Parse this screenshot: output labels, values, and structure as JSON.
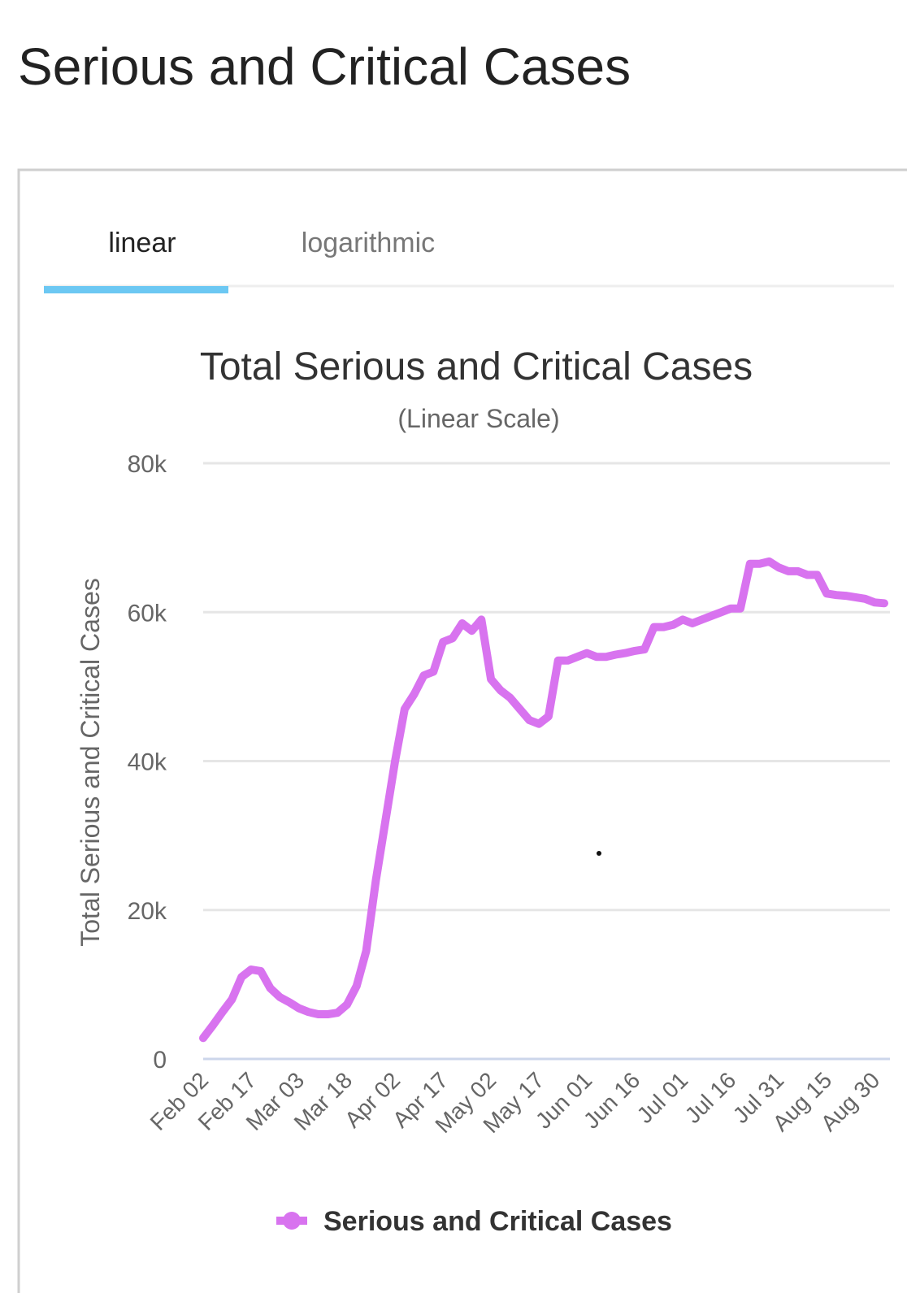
{
  "heading": "Serious and Critical Cases",
  "tabs": [
    "linear",
    "logarithmic"
  ],
  "chart_data": {
    "type": "line",
    "title": "Total Serious and Critical Cases",
    "subtitle": "(Linear Scale)",
    "y_label": "Total Serious and Critical Cases",
    "categories": [
      "Feb 02",
      null,
      null,
      null,
      null,
      "Feb 17",
      null,
      null,
      null,
      null,
      "Mar 03",
      null,
      null,
      null,
      null,
      "Mar 18",
      null,
      null,
      null,
      null,
      "Apr 02",
      null,
      null,
      null,
      null,
      "Apr 17",
      null,
      null,
      null,
      null,
      "May 02",
      null,
      null,
      null,
      null,
      "May 17",
      null,
      null,
      null,
      null,
      "Jun 01",
      null,
      null,
      null,
      null,
      "Jun 16",
      null,
      null,
      null,
      null,
      "Jul 01",
      null,
      null,
      null,
      null,
      "Jul 16",
      null,
      null,
      null,
      null,
      "Jul 31",
      null,
      null,
      null,
      null,
      "Aug 15",
      null,
      null,
      null,
      null,
      "Aug 30",
      null
    ],
    "series": [
      {
        "name": "Serious and Critical Cases",
        "color": "#d873ef",
        "values": [
          2800,
          4500,
          6300,
          8000,
          11000,
          12000,
          11800,
          9500,
          8300,
          7600,
          6800,
          6300,
          6000,
          6000,
          6200,
          7300,
          9800,
          14500,
          24000,
          32000,
          40000,
          47000,
          49000,
          51500,
          52000,
          56000,
          56500,
          58500,
          57500,
          59000,
          51000,
          49500,
          48500,
          47000,
          45500,
          45000,
          46000,
          53500,
          53500,
          54000,
          54500,
          54000,
          54000,
          54300,
          54500,
          54800,
          55000,
          58000,
          58000,
          58300,
          59000,
          58500,
          59000,
          59500,
          60000,
          60500,
          60500,
          66500,
          66500,
          66800,
          66000,
          65500,
          65500,
          65000,
          65000,
          62500,
          62300,
          62200,
          62000,
          61800,
          61300,
          61200
        ]
      }
    ],
    "ylim": [
      0,
      80000
    ],
    "yticks": [
      0,
      {
        "value": 20000,
        "label": "20k"
      },
      {
        "value": 40000,
        "label": "40k"
      },
      {
        "value": 60000,
        "label": "60k"
      },
      {
        "value": 80000,
        "label": "80k"
      }
    ],
    "grid": true,
    "legend": "bottom"
  }
}
